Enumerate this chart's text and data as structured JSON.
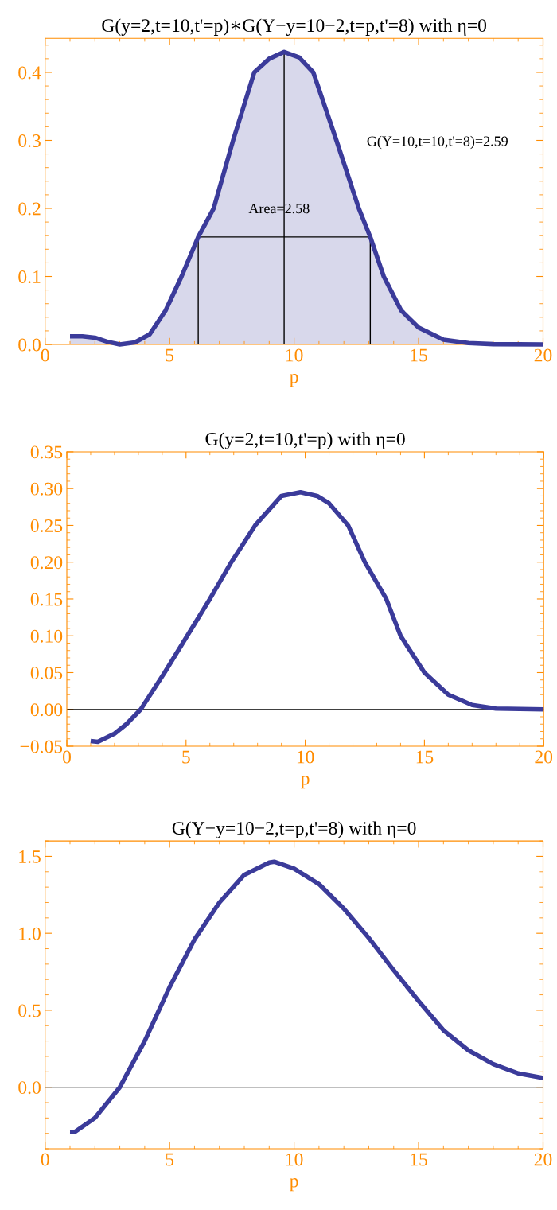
{
  "chart_data": [
    {
      "type": "area",
      "title": "G(y=2,t=10,t'=p)∗G(Y−y=10−2,t=p,t'=8) with η=0",
      "xlabel": "p",
      "xlim": [
        0,
        20
      ],
      "xticks": [
        0,
        5,
        10,
        15,
        20
      ],
      "ylim": [
        0,
        0.45
      ],
      "yticks": [
        {
          "value": 0,
          "label": "0.0"
        },
        {
          "value": 0.1,
          "label": "0.1"
        },
        {
          "value": 0.2,
          "label": "0.2"
        },
        {
          "value": 0.3,
          "label": "0.3"
        },
        {
          "value": 0.4,
          "label": "0.4"
        }
      ],
      "grid": false,
      "legend": false,
      "series": [
        {
          "color": "#3b3b9a",
          "x": [
            1,
            1.5,
            2,
            2.5,
            3,
            3.6,
            4.2,
            4.84,
            5.48,
            6.15,
            6.77,
            7.55,
            8.4,
            9,
            9.6,
            10.2,
            10.77,
            11.7,
            12.6,
            13.06,
            13.6,
            14.3,
            15,
            16,
            17,
            18,
            20
          ],
          "values": [
            0.012,
            0.012,
            0.01,
            0.004,
            0.0,
            0.003,
            0.015,
            0.05,
            0.1,
            0.158,
            0.2,
            0.3,
            0.4,
            0.42,
            0.43,
            0.422,
            0.4,
            0.3,
            0.2,
            0.158,
            0.1,
            0.05,
            0.025,
            0.007,
            0.002,
            0.0005,
            0
          ]
        },
        {
          "type": "line",
          "color": "#000000",
          "x": [
            6.15,
            6.15,
            13.06,
            13.06
          ],
          "values": [
            0,
            0.158,
            0.158,
            0
          ]
        },
        {
          "type": "line",
          "color": "#000000",
          "x": [
            9.6,
            9.6
          ],
          "values": [
            0,
            0.43
          ]
        }
      ],
      "annotations": [
        "G(Y=10,t=10,t'=8)=2.59",
        "Area=2.58"
      ]
    },
    {
      "type": "line",
      "title": "G(y=2,t=10,t'=p) with η=0",
      "xlabel": "p",
      "xlim": [
        0,
        20
      ],
      "xticks": [
        0,
        5,
        10,
        15,
        20
      ],
      "ylim": [
        -0.05,
        0.35
      ],
      "yticks": [
        {
          "value": -0.05,
          "label": "−0.05"
        },
        {
          "value": 0,
          "label": "0.00"
        },
        {
          "value": 0.05,
          "label": "0.05"
        },
        {
          "value": 0.1,
          "label": "0.10"
        },
        {
          "value": 0.15,
          "label": "0.15"
        },
        {
          "value": 0.2,
          "label": "0.20"
        },
        {
          "value": 0.25,
          "label": "0.25"
        },
        {
          "value": 0.3,
          "label": "0.30"
        },
        {
          "value": 0.35,
          "label": "0.35"
        }
      ],
      "grid": false,
      "legend": false,
      "series": [
        {
          "color": "#3b3b9a",
          "x": [
            1,
            1.3,
            2,
            2.5,
            3.1,
            4.1,
            5.05,
            6,
            6.9,
            7.9,
            9,
            9.8,
            10.5,
            11,
            11.8,
            12.5,
            13.4,
            14,
            15,
            16,
            17,
            18,
            20
          ],
          "values": [
            -0.043,
            -0.044,
            -0.033,
            -0.02,
            0.0,
            0.05,
            0.1,
            0.15,
            0.2,
            0.25,
            0.29,
            0.295,
            0.29,
            0.28,
            0.25,
            0.2,
            0.15,
            0.1,
            0.05,
            0.02,
            0.006,
            0.001,
            0
          ]
        }
      ],
      "ref_lines": [
        {
          "axis": "y",
          "value": 0,
          "color": "#000000"
        }
      ]
    },
    {
      "type": "line",
      "title": "G(Y−y=10−2,t=p,t'=8) with η=0",
      "xlabel": "p",
      "xlim": [
        0,
        20
      ],
      "xticks": [
        0,
        5,
        10,
        15,
        20
      ],
      "ylim": [
        -0.4,
        1.6
      ],
      "yticks": [
        {
          "value": 0,
          "label": "0.0"
        },
        {
          "value": 0.5,
          "label": "0.5"
        },
        {
          "value": 1,
          "label": "1.0"
        },
        {
          "value": 1.5,
          "label": "1.5"
        }
      ],
      "grid": false,
      "legend": false,
      "series": [
        {
          "color": "#3b3b9a",
          "x": [
            1,
            1.2,
            2,
            3,
            4,
            5,
            6,
            7,
            8,
            9,
            9.2,
            10,
            11,
            12,
            13,
            14,
            15,
            16,
            17,
            18,
            19,
            20
          ],
          "values": [
            -0.29,
            -0.29,
            -0.2,
            0.0,
            0.3,
            0.65,
            0.96,
            1.2,
            1.38,
            1.46,
            1.465,
            1.42,
            1.32,
            1.16,
            0.97,
            0.76,
            0.56,
            0.37,
            0.24,
            0.15,
            0.09,
            0.06
          ]
        }
      ],
      "ref_lines": [
        {
          "axis": "y",
          "value": 0,
          "color": "#000000"
        }
      ]
    }
  ]
}
